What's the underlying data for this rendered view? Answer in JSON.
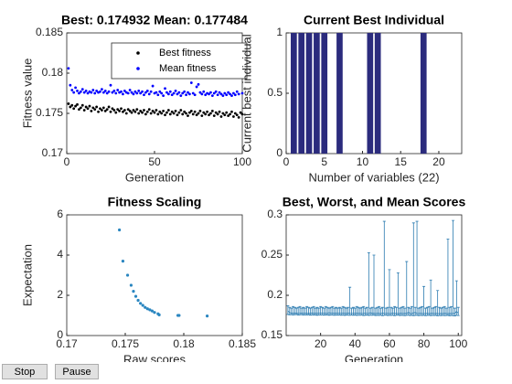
{
  "chart_data": [
    {
      "type": "scatter",
      "title": "Best: 0.174932 Mean: 0.177484",
      "xlabel": "Generation",
      "ylabel": "Fitness value",
      "xlim": [
        0,
        100
      ],
      "xticks": [
        0,
        50,
        100
      ],
      "ylim": [
        0.17,
        0.185
      ],
      "yticks": [
        0.17,
        0.175,
        0.18,
        0.185
      ],
      "legend": "upper right",
      "x": [
        1,
        2,
        3,
        4,
        5,
        6,
        7,
        8,
        9,
        10,
        11,
        12,
        13,
        14,
        15,
        16,
        17,
        18,
        19,
        20,
        21,
        22,
        23,
        24,
        25,
        26,
        27,
        28,
        29,
        30,
        31,
        32,
        33,
        34,
        35,
        36,
        37,
        38,
        39,
        40,
        41,
        42,
        43,
        44,
        45,
        46,
        47,
        48,
        49,
        50,
        51,
        52,
        53,
        54,
        55,
        56,
        57,
        58,
        59,
        60,
        61,
        62,
        63,
        64,
        65,
        66,
        67,
        68,
        69,
        70,
        71,
        72,
        73,
        74,
        75,
        76,
        77,
        78,
        79,
        80,
        81,
        82,
        83,
        84,
        85,
        86,
        87,
        88,
        89,
        90,
        91,
        92,
        93,
        94,
        95,
        96,
        97,
        98,
        99,
        100
      ],
      "series": [
        {
          "name": "Best fitness",
          "color": "#000000",
          "values": [
            0.1762,
            0.1758,
            0.176,
            0.1756,
            0.1759,
            0.1761,
            0.1755,
            0.1757,
            0.176,
            0.1754,
            0.1758,
            0.1756,
            0.1759,
            0.1753,
            0.1757,
            0.1755,
            0.1758,
            0.1752,
            0.1756,
            0.1754,
            0.1757,
            0.1753,
            0.1755,
            0.1758,
            0.1752,
            0.1756,
            0.1754,
            0.1751,
            0.1755,
            0.1753,
            0.1756,
            0.1752,
            0.1754,
            0.175,
            0.1755,
            0.1753,
            0.1751,
            0.1754,
            0.1752,
            0.1755,
            0.175,
            0.1753,
            0.1751,
            0.1754,
            0.1749,
            0.1752,
            0.1755,
            0.175,
            0.1753,
            0.1751,
            0.1754,
            0.1749,
            0.1752,
            0.175,
            0.1753,
            0.1748,
            0.1751,
            0.1754,
            0.1749,
            0.1752,
            0.175,
            0.1753,
            0.1748,
            0.1751,
            0.1754,
            0.1749,
            0.1752,
            0.175,
            0.1747,
            0.1751,
            0.1753,
            0.1749,
            0.1752,
            0.1748,
            0.175,
            0.1753,
            0.1747,
            0.1751,
            0.1749,
            0.1752,
            0.1748,
            0.175,
            0.1753,
            0.1747,
            0.1751,
            0.1749,
            0.1752,
            0.1746,
            0.175,
            0.1748,
            0.1751,
            0.1747,
            0.1749,
            0.1752,
            0.1746,
            0.175,
            0.1748,
            0.1745,
            0.1751,
            0.1749
          ]
        },
        {
          "name": "Mean fitness",
          "color": "#0000ff",
          "values": [
            0.1806,
            0.1785,
            0.1779,
            0.1776,
            0.1782,
            0.1778,
            0.1775,
            0.1777,
            0.178,
            0.1776,
            0.1778,
            0.1775,
            0.1777,
            0.1776,
            0.1779,
            0.1775,
            0.1778,
            0.1776,
            0.1777,
            0.178,
            0.1776,
            0.1778,
            0.1775,
            0.1777,
            0.1785,
            0.1776,
            0.1778,
            0.1775,
            0.1779,
            0.1776,
            0.1777,
            0.1774,
            0.1778,
            0.1776,
            0.1775,
            0.1779,
            0.1776,
            0.1774,
            0.1777,
            0.1775,
            0.1778,
            0.1775,
            0.1777,
            0.1773,
            0.1776,
            0.1778,
            0.1774,
            0.1777,
            0.1784,
            0.1775,
            0.1776,
            0.1773,
            0.1777,
            0.1775,
            0.1772,
            0.1781,
            0.1776,
            0.1774,
            0.1777,
            0.1773,
            0.1775,
            0.1778,
            0.1774,
            0.1776,
            0.1772,
            0.1775,
            0.1777,
            0.1773,
            0.1776,
            0.1774,
            0.1788,
            0.1775,
            0.1773,
            0.1783,
            0.1786,
            0.1776,
            0.1774,
            0.1777,
            0.1773,
            0.1775,
            0.1774,
            0.1776,
            0.1772,
            0.1775,
            0.1777,
            0.1773,
            0.1776,
            0.1774,
            0.1772,
            0.1775,
            0.1773,
            0.1776,
            0.1774,
            0.1772,
            0.1775,
            0.1773,
            0.1777,
            0.1774,
            0.1801,
            0.1775
          ]
        }
      ]
    },
    {
      "type": "bar",
      "title": "Current Best Individual",
      "xlabel": "Number of variables (22)",
      "ylabel": "Current best individual",
      "xlim": [
        0,
        23
      ],
      "xticks": [
        0,
        5,
        10,
        15,
        20
      ],
      "ylim": [
        0,
        1
      ],
      "yticks": [
        0,
        0.5,
        1
      ],
      "color": "#2b2b7d",
      "x": [
        1,
        2,
        3,
        4,
        5,
        6,
        7,
        8,
        9,
        10,
        11,
        12,
        13,
        14,
        15,
        16,
        17,
        18,
        19,
        20,
        21,
        22
      ],
      "values": [
        1,
        1,
        1,
        1,
        1,
        0,
        1,
        0,
        0,
        0,
        1,
        1,
        0,
        0,
        0,
        0,
        0,
        1,
        0,
        0,
        0,
        0
      ]
    },
    {
      "type": "scatter",
      "title": "Fitness Scaling",
      "xlabel": "Raw scores",
      "ylabel": "Expectation",
      "xlim": [
        0.17,
        0.185
      ],
      "xticks": [
        0.17,
        0.175,
        0.18,
        0.185
      ],
      "ylim": [
        0,
        6
      ],
      "yticks": [
        0,
        2,
        4,
        6
      ],
      "color": "#2a86c0",
      "x": [
        0.1745,
        0.1748,
        0.1752,
        0.1755,
        0.1757,
        0.1759,
        0.1761,
        0.1763,
        0.1765,
        0.1767,
        0.1769,
        0.1771,
        0.1773,
        0.1775,
        0.1778,
        0.1779,
        0.1795,
        0.1796,
        0.182
      ],
      "values": [
        5.25,
        3.7,
        3.0,
        2.5,
        2.2,
        1.95,
        1.75,
        1.6,
        1.5,
        1.4,
        1.33,
        1.28,
        1.22,
        1.15,
        1.08,
        1.03,
        1.0,
        1.0,
        0.97
      ]
    },
    {
      "type": "errorbar",
      "title": "Best, Worst, and Mean Scores",
      "xlabel": "Generation",
      "xlim": [
        0,
        102
      ],
      "xticks": [
        20,
        40,
        60,
        80,
        100
      ],
      "ylim": [
        0.15,
        0.3
      ],
      "yticks": [
        0.15,
        0.2,
        0.25,
        0.3
      ],
      "color": "#2b7bb0",
      "x": [
        1,
        2,
        3,
        4,
        5,
        6,
        7,
        8,
        9,
        10,
        11,
        12,
        13,
        14,
        15,
        16,
        17,
        18,
        19,
        20,
        21,
        22,
        23,
        24,
        25,
        26,
        27,
        28,
        29,
        30,
        31,
        32,
        33,
        34,
        35,
        36,
        37,
        38,
        39,
        40,
        41,
        42,
        43,
        44,
        45,
        46,
        47,
        48,
        49,
        50,
        51,
        52,
        53,
        54,
        55,
        56,
        57,
        58,
        59,
        60,
        61,
        62,
        63,
        64,
        65,
        66,
        67,
        68,
        69,
        70,
        71,
        72,
        73,
        74,
        75,
        76,
        77,
        78,
        79,
        80,
        81,
        82,
        83,
        84,
        85,
        86,
        87,
        88,
        89,
        90,
        91,
        92,
        93,
        94,
        95,
        96,
        97,
        98,
        99,
        100
      ],
      "values": [
        0.1806,
        0.1785,
        0.1779,
        0.1776,
        0.1782,
        0.1778,
        0.1775,
        0.1777,
        0.178,
        0.1776,
        0.1778,
        0.1775,
        0.1777,
        0.1776,
        0.1779,
        0.1775,
        0.1778,
        0.1776,
        0.1777,
        0.178,
        0.1776,
        0.1778,
        0.1775,
        0.1777,
        0.1785,
        0.1776,
        0.1778,
        0.1775,
        0.1779,
        0.1776,
        0.1777,
        0.1774,
        0.1778,
        0.1776,
        0.1775,
        0.1779,
        0.1776,
        0.1774,
        0.1777,
        0.1775,
        0.1778,
        0.1775,
        0.1777,
        0.1773,
        0.1776,
        0.1778,
        0.1774,
        0.1777,
        0.1784,
        0.1775,
        0.1776,
        0.1773,
        0.1777,
        0.1775,
        0.1772,
        0.1781,
        0.1776,
        0.1774,
        0.1777,
        0.1773,
        0.1775,
        0.1778,
        0.1774,
        0.1776,
        0.1772,
        0.1775,
        0.1777,
        0.1773,
        0.1776,
        0.1774,
        0.1788,
        0.1775,
        0.1773,
        0.1783,
        0.1786,
        0.1776,
        0.1774,
        0.1777,
        0.1773,
        0.1775,
        0.1774,
        0.1776,
        0.1772,
        0.1775,
        0.1777,
        0.1773,
        0.1776,
        0.1774,
        0.1772,
        0.1775,
        0.1773,
        0.1776,
        0.1774,
        0.1772,
        0.1775,
        0.1773,
        0.1777,
        0.1774,
        0.1801,
        0.1775
      ],
      "lower": [
        0.1762,
        0.1758,
        0.176,
        0.1756,
        0.1759,
        0.1761,
        0.1755,
        0.1757,
        0.176,
        0.1754,
        0.1758,
        0.1756,
        0.1759,
        0.1753,
        0.1757,
        0.1755,
        0.1758,
        0.1752,
        0.1756,
        0.1754,
        0.1757,
        0.1753,
        0.1755,
        0.1758,
        0.1752,
        0.1756,
        0.1754,
        0.1751,
        0.1755,
        0.1753,
        0.1756,
        0.1752,
        0.1754,
        0.175,
        0.1755,
        0.1753,
        0.1751,
        0.1754,
        0.1752,
        0.1755,
        0.175,
        0.1753,
        0.1751,
        0.1754,
        0.1749,
        0.1752,
        0.1755,
        0.175,
        0.1753,
        0.1751,
        0.1754,
        0.1749,
        0.1752,
        0.175,
        0.1753,
        0.1748,
        0.1751,
        0.1754,
        0.1749,
        0.1752,
        0.175,
        0.1753,
        0.1748,
        0.1751,
        0.1754,
        0.1749,
        0.1752,
        0.175,
        0.1747,
        0.1751,
        0.1753,
        0.1749,
        0.1752,
        0.1748,
        0.175,
        0.1753,
        0.1747,
        0.1751,
        0.1749,
        0.1752,
        0.1748,
        0.175,
        0.1753,
        0.1747,
        0.1751,
        0.1749,
        0.1752,
        0.1746,
        0.175,
        0.1748,
        0.1751,
        0.1747,
        0.1749,
        0.1752,
        0.1746,
        0.175,
        0.1748,
        0.1745,
        0.1751,
        0.1749
      ],
      "upper": [
        0.187,
        0.185,
        0.184,
        0.186,
        0.185,
        0.184,
        0.185,
        0.186,
        0.184,
        0.185,
        0.184,
        0.186,
        0.185,
        0.184,
        0.185,
        0.186,
        0.184,
        0.185,
        0.184,
        0.186,
        0.185,
        0.184,
        0.186,
        0.185,
        0.184,
        0.185,
        0.186,
        0.184,
        0.185,
        0.184,
        0.185,
        0.184,
        0.186,
        0.185,
        0.184,
        0.185,
        0.21,
        0.184,
        0.185,
        0.184,
        0.186,
        0.185,
        0.184,
        0.185,
        0.186,
        0.184,
        0.185,
        0.253,
        0.184,
        0.185,
        0.25,
        0.184,
        0.185,
        0.186,
        0.184,
        0.185,
        0.292,
        0.184,
        0.185,
        0.232,
        0.185,
        0.184,
        0.186,
        0.185,
        0.228,
        0.184,
        0.185,
        0.186,
        0.184,
        0.242,
        0.185,
        0.184,
        0.186,
        0.29,
        0.185,
        0.292,
        0.184,
        0.185,
        0.186,
        0.211,
        0.184,
        0.185,
        0.186,
        0.219,
        0.184,
        0.185,
        0.186,
        0.206,
        0.185,
        0.184,
        0.185,
        0.186,
        0.184,
        0.27,
        0.185,
        0.186,
        0.293,
        0.184,
        0.218,
        0.185
      ]
    }
  ],
  "buttons": [
    "Stop",
    "Pause"
  ]
}
